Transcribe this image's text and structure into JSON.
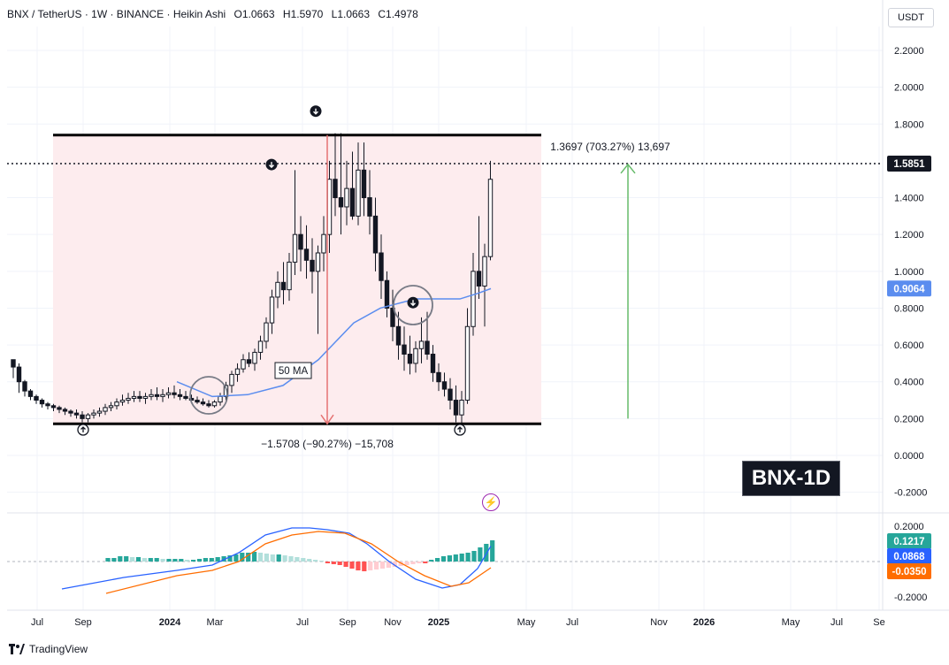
{
  "header": {
    "symbol": "BNX / TetherUS · 1W · BINANCE · Heikin Ashi",
    "open_label": "O",
    "open": "1.0663",
    "high_label": "H",
    "high": "1.5970",
    "low_label": "L",
    "low": "1.0663",
    "close_label": "C",
    "close": "1.4978"
  },
  "currency_button": "USDT",
  "watermark": "BNX-1D",
  "brand": "TradingView",
  "colors": {
    "up": "#131722",
    "down": "#131722",
    "ma": "#5b8def",
    "macd": "#2962ff",
    "signal": "#ff6d00",
    "hist_pos_strong": "#26a69a",
    "hist_pos_weak": "#b2dfdb",
    "hist_neg_strong": "#ff5252",
    "hist_neg_weak": "#ffcdd2",
    "range_fill": "#fdecee",
    "measure_down": "#e57373",
    "measure_up": "#66bb6a"
  },
  "chart_data": {
    "type": "candlestick",
    "style": "Heikin Ashi",
    "interval": "1W",
    "price_axis": {
      "ticks": [
        "2.2000",
        "2.0000",
        "1.8000",
        "1.4000",
        "1.2000",
        "1.0000",
        "0.8000",
        "0.6000",
        "0.4000",
        "0.2000",
        "0.0000",
        "-0.2000"
      ],
      "min": -0.29,
      "max": 2.32
    },
    "time_axis": {
      "labels": [
        "Jul",
        "Sep",
        "2024",
        "Mar",
        "Jul",
        "Sep",
        "Nov",
        "2025",
        "May",
        "Jul",
        "Nov",
        "2026",
        "May",
        "Jul",
        "Se"
      ],
      "bold": [
        "2024",
        "2025",
        "2026"
      ]
    },
    "last_price": {
      "value": "1.5851",
      "y": 1.5851
    },
    "ma_label": {
      "text": "50 MA",
      "value": "0.9064",
      "y": 0.9064
    },
    "range": {
      "top": 1.74,
      "bottom": 0.172
    },
    "measure_down": {
      "text": "−1.5708 (−90.27%) −15,708",
      "from": 1.74,
      "to": 0.172
    },
    "measure_up": {
      "text": "1.3697 (703.27%) 13,697",
      "from": 0.2,
      "to": 1.6
    },
    "macd_axis": {
      "ticks": [
        "0.2000",
        "-0.2000"
      ],
      "min": -0.24,
      "max": 0.24
    },
    "macd_badges": {
      "hist": "0.1217",
      "macd": "0.0868",
      "signal": "-0.0350"
    },
    "candles": [
      [
        0.52,
        0.52,
        0.42,
        0.48
      ],
      [
        0.48,
        0.5,
        0.34,
        0.4
      ],
      [
        0.4,
        0.41,
        0.32,
        0.35
      ],
      [
        0.35,
        0.36,
        0.3,
        0.32
      ],
      [
        0.32,
        0.33,
        0.28,
        0.3
      ],
      [
        0.3,
        0.31,
        0.26,
        0.28
      ],
      [
        0.28,
        0.29,
        0.25,
        0.27
      ],
      [
        0.27,
        0.28,
        0.24,
        0.26
      ],
      [
        0.26,
        0.27,
        0.23,
        0.25
      ],
      [
        0.25,
        0.26,
        0.22,
        0.24
      ],
      [
        0.24,
        0.25,
        0.21,
        0.23
      ],
      [
        0.23,
        0.25,
        0.2,
        0.22
      ],
      [
        0.22,
        0.24,
        0.18,
        0.2
      ],
      [
        0.2,
        0.23,
        0.18,
        0.22
      ],
      [
        0.22,
        0.25,
        0.2,
        0.23
      ],
      [
        0.23,
        0.26,
        0.21,
        0.24
      ],
      [
        0.24,
        0.28,
        0.22,
        0.26
      ],
      [
        0.26,
        0.29,
        0.24,
        0.27
      ],
      [
        0.27,
        0.31,
        0.25,
        0.29
      ],
      [
        0.29,
        0.33,
        0.27,
        0.3
      ],
      [
        0.3,
        0.34,
        0.28,
        0.31
      ],
      [
        0.31,
        0.35,
        0.29,
        0.32
      ],
      [
        0.32,
        0.35,
        0.29,
        0.31
      ],
      [
        0.31,
        0.34,
        0.28,
        0.32
      ],
      [
        0.32,
        0.36,
        0.3,
        0.33
      ],
      [
        0.33,
        0.37,
        0.3,
        0.32
      ],
      [
        0.32,
        0.36,
        0.29,
        0.33
      ],
      [
        0.33,
        0.37,
        0.31,
        0.34
      ],
      [
        0.34,
        0.38,
        0.31,
        0.33
      ],
      [
        0.33,
        0.36,
        0.3,
        0.32
      ],
      [
        0.32,
        0.35,
        0.3,
        0.31
      ],
      [
        0.31,
        0.33,
        0.29,
        0.3
      ],
      [
        0.3,
        0.32,
        0.28,
        0.29
      ],
      [
        0.29,
        0.31,
        0.27,
        0.28
      ],
      [
        0.28,
        0.3,
        0.26,
        0.27
      ],
      [
        0.27,
        0.3,
        0.26,
        0.29
      ],
      [
        0.29,
        0.34,
        0.27,
        0.32
      ],
      [
        0.32,
        0.4,
        0.3,
        0.38
      ],
      [
        0.38,
        0.46,
        0.34,
        0.44
      ],
      [
        0.44,
        0.5,
        0.4,
        0.47
      ],
      [
        0.47,
        0.55,
        0.45,
        0.52
      ],
      [
        0.52,
        0.56,
        0.48,
        0.5
      ],
      [
        0.5,
        0.58,
        0.46,
        0.56
      ],
      [
        0.56,
        0.65,
        0.52,
        0.62
      ],
      [
        0.62,
        0.75,
        0.58,
        0.72
      ],
      [
        0.72,
        0.9,
        0.66,
        0.86
      ],
      [
        0.86,
        1.0,
        0.8,
        0.94
      ],
      [
        0.94,
        1.05,
        0.82,
        0.9
      ],
      [
        0.9,
        1.1,
        0.84,
        1.05
      ],
      [
        1.05,
        1.55,
        0.98,
        1.2
      ],
      [
        1.2,
        1.3,
        1.0,
        1.12
      ],
      [
        1.12,
        1.25,
        0.96,
        1.06
      ],
      [
        1.06,
        1.18,
        0.88,
        1.0
      ],
      [
        1.0,
        1.14,
        0.66,
        1.1
      ],
      [
        1.1,
        1.3,
        1.0,
        1.2
      ],
      [
        1.2,
        1.6,
        1.1,
        1.5
      ],
      [
        1.5,
        1.75,
        1.3,
        1.4
      ],
      [
        1.4,
        1.75,
        1.2,
        1.35
      ],
      [
        1.35,
        1.6,
        1.25,
        1.45
      ],
      [
        1.45,
        1.65,
        1.28,
        1.3
      ],
      [
        1.3,
        1.7,
        1.25,
        1.55
      ],
      [
        1.55,
        1.7,
        1.3,
        1.4
      ],
      [
        1.4,
        1.55,
        1.2,
        1.3
      ],
      [
        1.3,
        1.4,
        1.0,
        1.1
      ],
      [
        1.1,
        1.2,
        0.85,
        0.95
      ],
      [
        0.95,
        1.0,
        0.75,
        0.8
      ],
      [
        0.8,
        0.9,
        0.62,
        0.7
      ],
      [
        0.7,
        0.78,
        0.52,
        0.6
      ],
      [
        0.6,
        0.7,
        0.46,
        0.55
      ],
      [
        0.55,
        0.65,
        0.44,
        0.5
      ],
      [
        0.5,
        0.62,
        0.45,
        0.58
      ],
      [
        0.58,
        0.75,
        0.5,
        0.62
      ],
      [
        0.62,
        0.78,
        0.52,
        0.55
      ],
      [
        0.55,
        0.6,
        0.4,
        0.45
      ],
      [
        0.45,
        0.5,
        0.35,
        0.4
      ],
      [
        0.4,
        0.45,
        0.32,
        0.36
      ],
      [
        0.36,
        0.42,
        0.25,
        0.3
      ],
      [
        0.3,
        0.38,
        0.18,
        0.22
      ],
      [
        0.22,
        0.35,
        0.17,
        0.3
      ],
      [
        0.3,
        0.8,
        0.28,
        0.7
      ],
      [
        0.7,
        1.1,
        0.65,
        1.0
      ],
      [
        1.0,
        1.3,
        0.85,
        0.92
      ],
      [
        0.92,
        1.15,
        0.7,
        1.08
      ],
      [
        1.08,
        1.6,
        1.06,
        1.5
      ]
    ],
    "ma": [
      [
        200,
        0.4
      ],
      [
        240,
        0.32
      ],
      [
        280,
        0.33
      ],
      [
        320,
        0.38
      ],
      [
        360,
        0.52
      ],
      [
        400,
        0.72
      ],
      [
        430,
        0.8
      ],
      [
        470,
        0.85
      ],
      [
        500,
        0.85
      ],
      [
        520,
        0.85
      ],
      [
        540,
        0.88
      ],
      [
        555,
        0.906
      ]
    ],
    "macd": [
      [
        70,
        -0.155
      ],
      [
        140,
        -0.09
      ],
      [
        200,
        -0.05
      ],
      [
        240,
        -0.02
      ],
      [
        270,
        0.05
      ],
      [
        300,
        0.15
      ],
      [
        330,
        0.19
      ],
      [
        350,
        0.19
      ],
      [
        370,
        0.18
      ],
      [
        395,
        0.16
      ],
      [
        415,
        0.1
      ],
      [
        440,
        0.0
      ],
      [
        470,
        -0.1
      ],
      [
        500,
        -0.15
      ],
      [
        520,
        -0.13
      ],
      [
        540,
        -0.04
      ],
      [
        555,
        0.087
      ]
    ],
    "signal": [
      [
        120,
        -0.18
      ],
      [
        200,
        -0.08
      ],
      [
        240,
        -0.05
      ],
      [
        270,
        0.0
      ],
      [
        300,
        0.1
      ],
      [
        330,
        0.15
      ],
      [
        360,
        0.17
      ],
      [
        390,
        0.16
      ],
      [
        420,
        0.1
      ],
      [
        450,
        0.0
      ],
      [
        480,
        -0.08
      ],
      [
        510,
        -0.14
      ],
      [
        530,
        -0.12
      ],
      [
        555,
        -0.035
      ]
    ],
    "hist": [
      0.02,
      0.02,
      0.03,
      0.03,
      0.025,
      0.025,
      0.02,
      0.02,
      0.02,
      0.015,
      0.015,
      0.015,
      0.015,
      0.01,
      0.01,
      0.015,
      0.02,
      0.02,
      0.025,
      0.03,
      0.035,
      0.04,
      0.05,
      0.05,
      0.055,
      0.05,
      0.045,
      0.04,
      0.04,
      0.035,
      0.03,
      0.025,
      0.02,
      0.015,
      0.01,
      0.005,
      -0.01,
      -0.015,
      -0.02,
      -0.03,
      -0.04,
      -0.05,
      -0.055,
      -0.05,
      -0.045,
      -0.04,
      -0.035,
      -0.03,
      -0.025,
      -0.02,
      -0.015,
      -0.01,
      -0.01,
      0.01,
      0.02,
      0.03,
      0.035,
      0.04,
      0.045,
      0.05,
      0.06,
      0.08,
      0.1,
      0.12
    ],
    "arrows": [
      {
        "dir": "up",
        "x": 94
      },
      {
        "dir": "up",
        "x": 520
      },
      {
        "dir": "down",
        "x": 357,
        "y": 1.87
      },
      {
        "dir": "down",
        "x": 307,
        "y": 1.58
      },
      {
        "dir": "down",
        "x": 467,
        "y": 0.83
      }
    ]
  }
}
